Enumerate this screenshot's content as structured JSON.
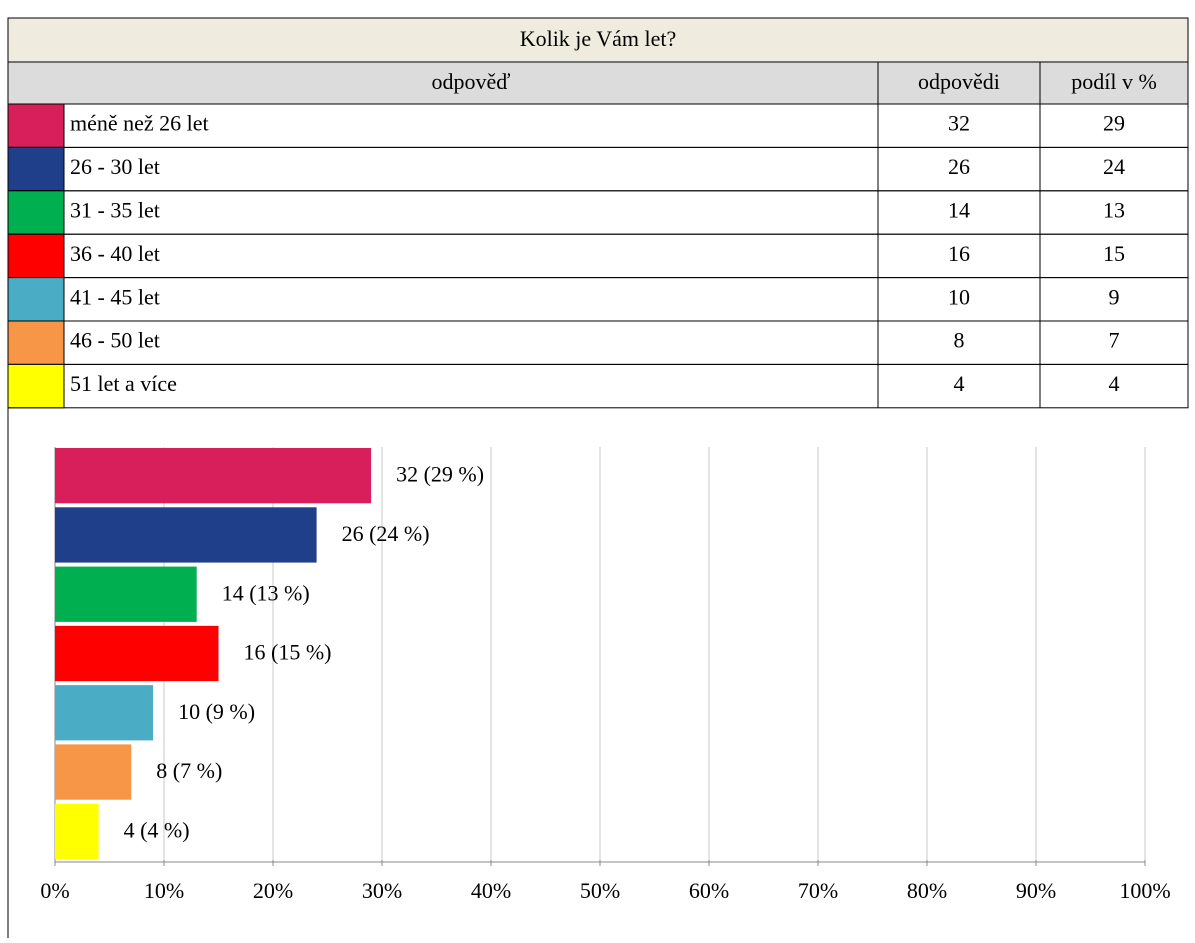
{
  "table": {
    "title": "Kolik je Vám let?",
    "headers": [
      "odpověď",
      "odpovědi",
      "podíl v %"
    ],
    "rows": [
      {
        "label": "méně než 26 let",
        "count": 32,
        "share": 29
      },
      {
        "label": "26 - 30 let",
        "count": 26,
        "share": 24
      },
      {
        "label": "31 - 35 let",
        "count": 14,
        "share": 13
      },
      {
        "label": "36 - 40 let",
        "count": 16,
        "share": 15
      },
      {
        "label": "41 - 45 let",
        "count": 10,
        "share": 9
      },
      {
        "label": "46 - 50 let",
        "count": 8,
        "share": 7
      },
      {
        "label": "51 let a více",
        "count": 4,
        "share": 4
      }
    ]
  },
  "chart_data": {
    "type": "bar",
    "orientation": "horizontal",
    "values": [
      29,
      24,
      13,
      15,
      9,
      7,
      4
    ],
    "value_labels": [
      "32 (29 %)",
      "26 (24 %)",
      "14 (13 %)",
      "16 (15 %)",
      "10 (9 %)",
      "8 (7 %)",
      "4 (4 %)"
    ],
    "colors": [
      "#d81e5b",
      "#1f3f8a",
      "#00b050",
      "#ff0000",
      "#4bacc6",
      "#f79646",
      "#ffff00"
    ],
    "xlim": [
      0,
      100
    ],
    "xticks": [
      {
        "value": 0,
        "label": "0%"
      },
      {
        "value": 10,
        "label": "10%"
      },
      {
        "value": 20,
        "label": "20%"
      },
      {
        "value": 30,
        "label": "30%"
      },
      {
        "value": 40,
        "label": "40%"
      },
      {
        "value": 50,
        "label": "50%"
      },
      {
        "value": 60,
        "label": "60%"
      },
      {
        "value": 70,
        "label": "70%"
      },
      {
        "value": 80,
        "label": "80%"
      },
      {
        "value": 90,
        "label": "90%"
      },
      {
        "value": 100,
        "label": "100%"
      }
    ],
    "grid": true
  }
}
